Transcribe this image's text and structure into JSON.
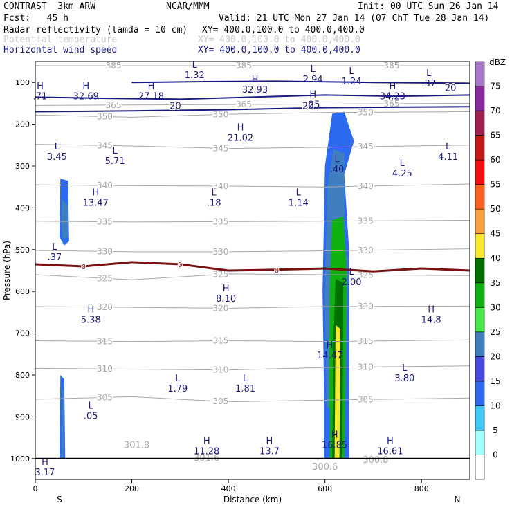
{
  "header": {
    "title": "CONTRAST  3km ARW",
    "org": "NCAR/MMM",
    "init": "Init: 00 UTC Sun 26 Jan 14",
    "fcst": "Fcst:   45 h",
    "valid": "Valid: 21 UTC Mon 27 Jan 14 (07 ChT Tue 28 Jan 14)",
    "field1": "Radar reflectivity (lamda = 10 cm)",
    "xy1": "XY= 400.0,100.0 to 400.0,400.0",
    "field2": "Potential temperature",
    "xy2": "XY= 400.0,100.0 to 400.0,400.0",
    "field3": "Horizontal wind speed",
    "xy3": "XY= 400.0,100.0 to 400.0,400.0"
  },
  "colors": {
    "field2": "#c8c8c8",
    "field3": "#1a1a8c",
    "theta": "#a8a8a8",
    "wind": "#1a1a80",
    "zero_line": "#7a1010",
    "hl_label": "#1a1a80"
  },
  "chart_data": {
    "type": "heatmap",
    "title": "Radar reflectivity, potential temperature and horizontal wind speed cross-section",
    "xlabel": "Distance (km)",
    "ylabel": "Pressure (hPa)",
    "xlim": [
      0,
      900
    ],
    "ylim": [
      1050,
      50
    ],
    "x_ticks": [
      0,
      200,
      400,
      600,
      800
    ],
    "y_ticks": [
      100,
      200,
      300,
      400,
      500,
      600,
      700,
      800,
      900,
      1000
    ],
    "x_end_labels": [
      "S",
      "N"
    ],
    "colorbar": {
      "unit": "dBZ",
      "levels": [
        0,
        5,
        10,
        15,
        20,
        25,
        30,
        35,
        40,
        45,
        50,
        55,
        60,
        65,
        70,
        75
      ],
      "colors": [
        "#ffffff",
        "#a0ffff",
        "#40c8f8",
        "#2c6bf0",
        "#4a4ae0",
        "#3f7fbf",
        "#48e848",
        "#10b010",
        "#007000",
        "#f8e830",
        "#f8a040",
        "#f86420",
        "#f81010",
        "#c81818",
        "#a02050",
        "#8a2aa0",
        "#a878c8"
      ]
    },
    "theta_contours": [
      {
        "value": 385,
        "label": "385",
        "pts": [
          [
            0,
            60
          ],
          [
            900,
            60
          ]
        ]
      },
      {
        "value": 365,
        "label": "365",
        "pts": [
          [
            0,
            155
          ],
          [
            900,
            150
          ]
        ]
      },
      {
        "value": 350,
        "label": "350",
        "pts": [
          [
            0,
            178
          ],
          [
            200,
            183
          ],
          [
            400,
            176
          ],
          [
            600,
            172
          ],
          [
            900,
            170
          ]
        ]
      },
      {
        "value": 345,
        "label": "345",
        "pts": [
          [
            0,
            248
          ],
          [
            200,
            252
          ],
          [
            400,
            258
          ],
          [
            600,
            255
          ],
          [
            900,
            250
          ]
        ]
      },
      {
        "value": 340,
        "label": "340",
        "pts": [
          [
            0,
            345
          ],
          [
            200,
            347
          ],
          [
            400,
            348
          ],
          [
            600,
            350
          ],
          [
            900,
            343
          ]
        ]
      },
      {
        "value": 335,
        "label": "335",
        "pts": [
          [
            0,
            432
          ],
          [
            200,
            434
          ],
          [
            400,
            433
          ],
          [
            600,
            432
          ],
          [
            900,
            430
          ]
        ]
      },
      {
        "value": 330,
        "label": "330",
        "pts": [
          [
            0,
            502
          ],
          [
            200,
            505
          ],
          [
            400,
            505
          ],
          [
            600,
            503
          ],
          [
            900,
            498
          ]
        ]
      },
      {
        "value": 325,
        "label": "325",
        "pts": [
          [
            0,
            560
          ],
          [
            200,
            572
          ],
          [
            400,
            558
          ],
          [
            600,
            560
          ],
          [
            900,
            562
          ]
        ]
      },
      {
        "value": 320,
        "label": "320",
        "pts": [
          [
            0,
            636
          ],
          [
            200,
            638
          ],
          [
            400,
            640
          ],
          [
            600,
            636
          ],
          [
            900,
            635
          ]
        ]
      },
      {
        "value": 315,
        "label": "315",
        "pts": [
          [
            0,
            718
          ],
          [
            200,
            720
          ],
          [
            400,
            718
          ],
          [
            600,
            720
          ],
          [
            900,
            716
          ]
        ]
      },
      {
        "value": 310,
        "label": "310",
        "pts": [
          [
            0,
            784
          ],
          [
            200,
            786
          ],
          [
            400,
            788
          ],
          [
            600,
            782
          ],
          [
            900,
            778
          ]
        ]
      },
      {
        "value": 305,
        "label": "305",
        "pts": [
          [
            0,
            858
          ],
          [
            200,
            852
          ],
          [
            400,
            864
          ],
          [
            600,
            860
          ],
          [
            900,
            855
          ]
        ]
      }
    ],
    "theta_labels": [
      {
        "x": 210,
        "p": 975,
        "t": "301.8"
      },
      {
        "x": 355,
        "p": 1005,
        "t": "301.6"
      },
      {
        "x": 600,
        "p": 1027,
        "t": "300.6"
      },
      {
        "x": 705,
        "p": 1010,
        "t": "300.8"
      }
    ],
    "wind_contours": [
      {
        "value": 20,
        "pts": [
          [
            0,
            170
          ],
          [
            200,
            168
          ],
          [
            400,
            165
          ],
          [
            600,
            160
          ],
          [
            900,
            158
          ]
        ]
      },
      {
        "value": 20,
        "pts": [
          [
            0,
            135
          ],
          [
            150,
            138
          ],
          [
            300,
            140
          ],
          [
            450,
            135
          ],
          [
            600,
            130
          ],
          [
            750,
            133
          ],
          [
            900,
            130
          ]
        ]
      },
      {
        "value": 20,
        "pts": [
          [
            200,
            100
          ],
          [
            350,
            98
          ],
          [
            500,
            97
          ],
          [
            700,
            100
          ],
          [
            900,
            102
          ]
        ]
      }
    ],
    "wind_labels": [
      {
        "x": 290,
        "p": 155,
        "t": "20"
      },
      {
        "x": 565,
        "p": 155,
        "t": "20"
      },
      {
        "x": 860,
        "p": 112,
        "t": "20"
      }
    ],
    "zero_isotherm": {
      "label": "0",
      "pts": [
        [
          0,
          535
        ],
        [
          100,
          540
        ],
        [
          200,
          530
        ],
        [
          300,
          535
        ],
        [
          400,
          550
        ],
        [
          500,
          548
        ],
        [
          600,
          545
        ],
        [
          700,
          552
        ],
        [
          800,
          545
        ],
        [
          900,
          550
        ]
      ]
    },
    "hl_markers": [
      {
        "x": 10,
        "p": 125,
        "letter": "H",
        "value": ".71"
      },
      {
        "x": 105,
        "p": 125,
        "letter": "H",
        "value": "32.69"
      },
      {
        "x": 240,
        "p": 125,
        "letter": "H",
        "value": "27.18"
      },
      {
        "x": 330,
        "p": 75,
        "letter": "L",
        "value": "1.32"
      },
      {
        "x": 455,
        "p": 110,
        "letter": "H",
        "value": "32.93"
      },
      {
        "x": 575,
        "p": 85,
        "letter": "L",
        "value": "2.94"
      },
      {
        "x": 655,
        "p": 90,
        "letter": "L",
        "value": "1.24"
      },
      {
        "x": 575,
        "p": 145,
        "letter": "H",
        "value": ".25"
      },
      {
        "x": 815,
        "p": 95,
        "letter": "L",
        "value": ".37"
      },
      {
        "x": 740,
        "p": 125,
        "letter": "H",
        "value": "34.23"
      },
      {
        "x": 45,
        "p": 270,
        "letter": "L",
        "value": "3.45"
      },
      {
        "x": 165,
        "p": 280,
        "letter": "L",
        "value": "5.71"
      },
      {
        "x": 425,
        "p": 225,
        "letter": "H",
        "value": "21.02"
      },
      {
        "x": 855,
        "p": 270,
        "letter": "L",
        "value": "4.11"
      },
      {
        "x": 625,
        "p": 300,
        "letter": "L",
        "value": ".40"
      },
      {
        "x": 760,
        "p": 310,
        "letter": "L",
        "value": "4.25"
      },
      {
        "x": 125,
        "p": 380,
        "letter": "H",
        "value": "13.47"
      },
      {
        "x": 370,
        "p": 380,
        "letter": "L",
        "value": ".18"
      },
      {
        "x": 545,
        "p": 380,
        "letter": "L",
        "value": "1.14"
      },
      {
        "x": 40,
        "p": 510,
        "letter": "L",
        "value": ".37"
      },
      {
        "x": 655,
        "p": 570,
        "letter": "L",
        "value": "2.00"
      },
      {
        "x": 395,
        "p": 610,
        "letter": "H",
        "value": "8.10"
      },
      {
        "x": 115,
        "p": 660,
        "letter": "H",
        "value": "5.38"
      },
      {
        "x": 820,
        "p": 660,
        "letter": "H",
        "value": "14.8"
      },
      {
        "x": 610,
        "p": 745,
        "letter": "H",
        "value": "14.47"
      },
      {
        "x": 765,
        "p": 800,
        "letter": "L",
        "value": "3.80"
      },
      {
        "x": 295,
        "p": 825,
        "letter": "L",
        "value": "1.79"
      },
      {
        "x": 435,
        "p": 825,
        "letter": "L",
        "value": "1.81"
      },
      {
        "x": 115,
        "p": 890,
        "letter": "L",
        "value": ".05"
      },
      {
        "x": 355,
        "p": 975,
        "letter": "H",
        "value": "11.28"
      },
      {
        "x": 485,
        "p": 975,
        "letter": "H",
        "value": "13.7"
      },
      {
        "x": 620,
        "p": 960,
        "letter": "H",
        "value": "16.85"
      },
      {
        "x": 735,
        "p": 975,
        "letter": "H",
        "value": "16.61"
      },
      {
        "x": 20,
        "p": 1025,
        "letter": "H",
        "value": "3.17"
      }
    ],
    "reflectivity_cells": [
      {
        "dbz": 10,
        "pts": [
          [
            52,
            330
          ],
          [
            68,
            335
          ],
          [
            70,
            480
          ],
          [
            60,
            490
          ],
          [
            50,
            470
          ]
        ]
      },
      {
        "dbz": 20,
        "pts": [
          [
            55,
            380
          ],
          [
            68,
            395
          ],
          [
            67,
            470
          ],
          [
            57,
            475
          ],
          [
            54,
            440
          ]
        ]
      },
      {
        "dbz": 10,
        "pts": [
          [
            52,
            800
          ],
          [
            60,
            810
          ],
          [
            62,
            1000
          ],
          [
            50,
            1000
          ]
        ]
      },
      {
        "dbz": 20,
        "pts": [
          [
            55,
            830
          ],
          [
            60,
            840
          ],
          [
            60,
            1000
          ],
          [
            55,
            1000
          ]
        ]
      },
      {
        "dbz": 10,
        "pts": [
          [
            615,
            175
          ],
          [
            640,
            170
          ],
          [
            660,
            240
          ],
          [
            640,
            320
          ],
          [
            650,
            500
          ],
          [
            650,
            1000
          ],
          [
            600,
            1000
          ],
          [
            595,
            600
          ],
          [
            600,
            300
          ]
        ]
      },
      {
        "dbz": 20,
        "pts": [
          [
            618,
            260
          ],
          [
            640,
            270
          ],
          [
            640,
            500
          ],
          [
            648,
            520
          ],
          [
            640,
            1000
          ],
          [
            605,
            1000
          ],
          [
            600,
            600
          ],
          [
            605,
            350
          ]
        ]
      },
      {
        "dbz": 30,
        "pts": [
          [
            615,
            430
          ],
          [
            638,
            420
          ],
          [
            645,
            560
          ],
          [
            640,
            1000
          ],
          [
            608,
            1000
          ],
          [
            610,
            600
          ]
        ]
      },
      {
        "dbz": 35,
        "pts": [
          [
            622,
            570
          ],
          [
            638,
            580
          ],
          [
            636,
            1000
          ],
          [
            615,
            1000
          ],
          [
            618,
            700
          ]
        ]
      },
      {
        "dbz": 40,
        "pts": [
          [
            622,
            680
          ],
          [
            632,
            690
          ],
          [
            630,
            1000
          ],
          [
            620,
            1000
          ]
        ]
      },
      {
        "dbz": 10,
        "pts": [
          [
            598,
            870
          ],
          [
            610,
            880
          ],
          [
            610,
            1000
          ],
          [
            598,
            1000
          ]
        ]
      }
    ]
  }
}
